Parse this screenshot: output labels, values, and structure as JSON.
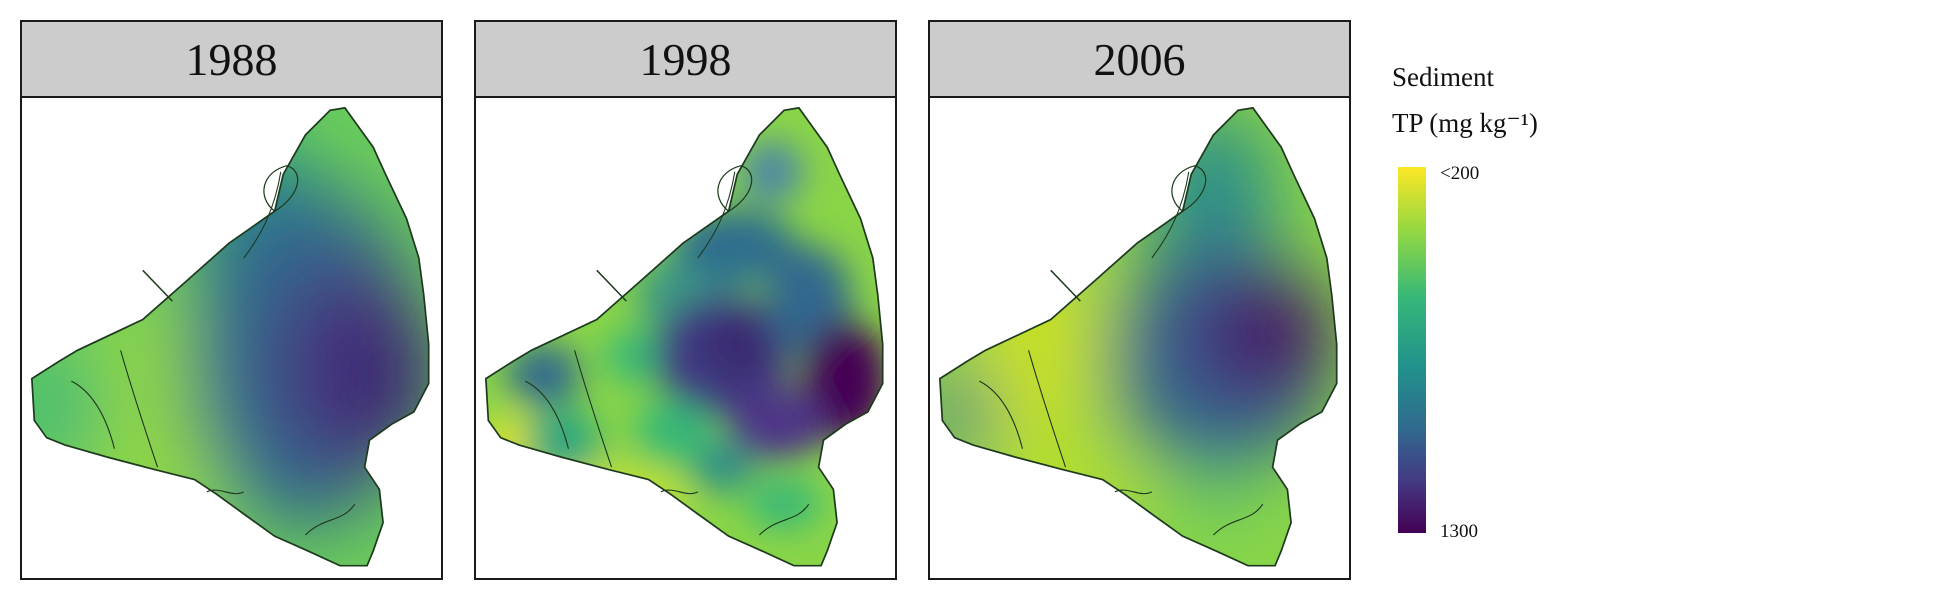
{
  "panels": [
    {
      "year": "1988"
    },
    {
      "year": "1998"
    },
    {
      "year": "2006"
    }
  ],
  "legend": {
    "title_line1": "Sediment",
    "title_line2": "TP (mg kg⁻¹)",
    "top_label": "<200",
    "bottom_label": "1300",
    "colorscale": [
      "#fde725",
      "#90d743",
      "#35b779",
      "#21918c",
      "#31688e",
      "#443983",
      "#440154"
    ]
  }
}
